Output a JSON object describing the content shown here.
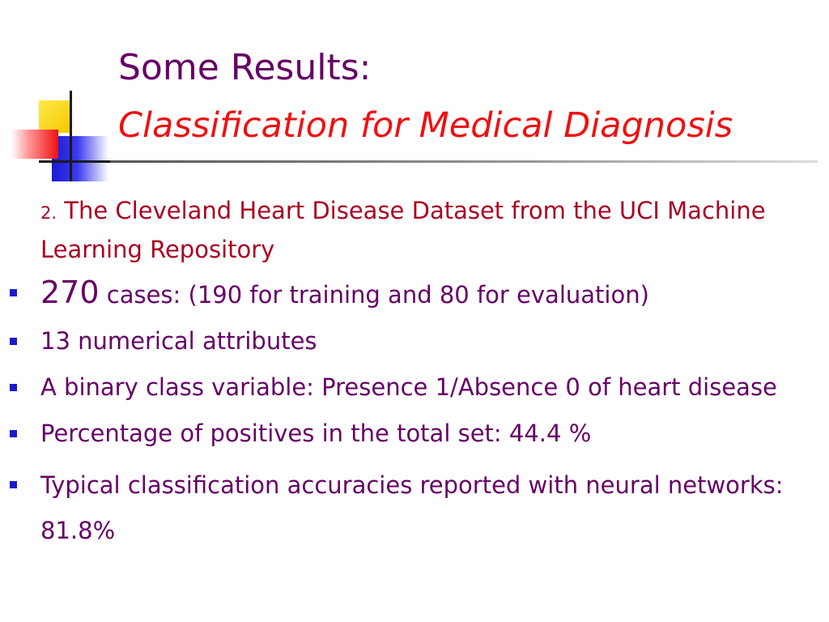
{
  "slide": {
    "title_line1": "Some Results:",
    "title_line2": "Classification for Medical Diagnosis",
    "intro_number": "2.",
    "intro_text": " The Cleveland Heart Disease Dataset from the UCI Machine Learning Repository",
    "bullets": [
      {
        "lead": "270",
        "text": " cases: (190 for training and 80 for evaluation)"
      },
      {
        "text": "13 numerical attributes"
      },
      {
        "text": "A binary class variable: Presence 1/Absence 0 of heart disease"
      },
      {
        "text": "Percentage of positives in the total set: 44.4 %"
      },
      {
        "text": "Typical classification accuracies reported with neural networks: 81.8%"
      }
    ]
  },
  "colors": {
    "title": "#660066",
    "subtitle": "#ee1111",
    "intro": "#aa0022",
    "body": "#660066",
    "bullet_marker": "#1a1acc"
  },
  "icons": {
    "logo": "colored-squares-logo-icon",
    "bullet": "square-bullet-icon"
  }
}
